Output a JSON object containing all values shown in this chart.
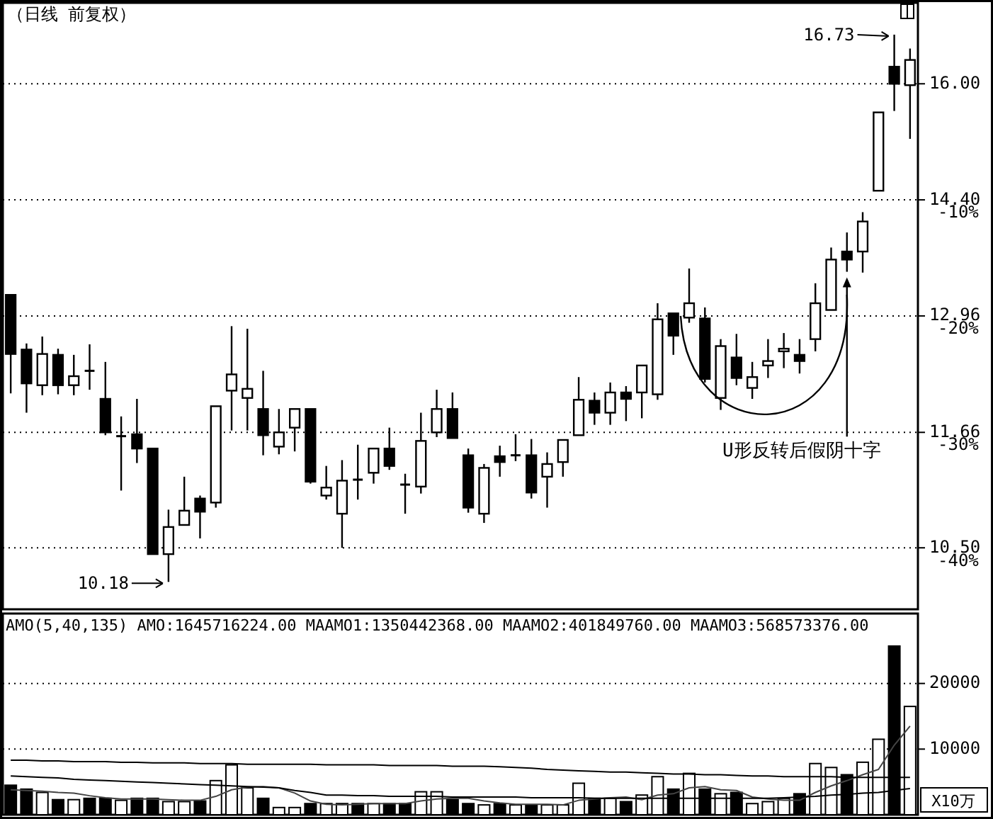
{
  "chart_data": [
    {
      "type": "candlestick",
      "title": "（日线 前复权）",
      "categories": [
        null,
        null,
        null,
        null,
        null,
        null,
        null,
        null,
        null,
        null,
        null,
        null,
        null,
        null,
        null,
        null,
        null,
        null,
        null,
        null,
        null,
        null,
        null,
        null,
        null,
        null,
        null,
        null,
        null,
        null,
        null,
        null,
        null,
        null,
        null,
        null,
        null,
        null,
        null,
        null,
        null,
        null,
        null,
        null,
        null,
        null,
        null,
        null,
        null,
        null,
        null,
        null,
        null,
        null,
        null,
        null,
        null,
        null
      ],
      "ohlc": [
        [
          13.21,
          13.21,
          12.08,
          12.52
        ],
        [
          12.57,
          12.64,
          11.87,
          12.19
        ],
        [
          12.17,
          12.72,
          12.06,
          12.52
        ],
        [
          12.51,
          12.58,
          12.07,
          12.17
        ],
        [
          12.17,
          12.51,
          12.06,
          12.27
        ],
        [
          12.33,
          12.63,
          12.12,
          12.33
        ],
        [
          12.02,
          12.43,
          11.63,
          11.66
        ],
        [
          11.62,
          11.83,
          11.06,
          11.62
        ],
        [
          11.64,
          12.02,
          11.34,
          11.49
        ],
        [
          11.49,
          11.49,
          10.44,
          10.44
        ],
        [
          10.44,
          10.87,
          10.18,
          10.7
        ],
        [
          10.72,
          11.2,
          10.72,
          10.86
        ],
        [
          10.98,
          11.01,
          10.59,
          10.85
        ],
        [
          10.94,
          11.94,
          10.89,
          11.94
        ],
        [
          12.11,
          12.84,
          11.68,
          12.29
        ],
        [
          12.03,
          12.81,
          11.68,
          12.13
        ],
        [
          11.91,
          12.33,
          11.42,
          11.63
        ],
        [
          11.51,
          11.91,
          11.43,
          11.66
        ],
        [
          11.71,
          11.91,
          11.46,
          11.91
        ],
        [
          11.91,
          11.91,
          11.13,
          11.15
        ],
        [
          11.01,
          11.31,
          10.97,
          11.09
        ],
        [
          10.83,
          11.37,
          10.5,
          11.16
        ],
        [
          11.17,
          11.53,
          10.97,
          11.17
        ],
        [
          11.24,
          11.49,
          11.13,
          11.49
        ],
        [
          11.49,
          11.71,
          11.27,
          11.31
        ],
        [
          11.12,
          11.23,
          10.83,
          11.12
        ],
        [
          11.1,
          11.87,
          11.03,
          11.57
        ],
        [
          11.66,
          12.12,
          11.61,
          11.91
        ],
        [
          11.91,
          12.09,
          11.6,
          11.6
        ],
        [
          11.42,
          11.49,
          10.84,
          10.89
        ],
        [
          10.83,
          11.33,
          10.74,
          11.29
        ],
        [
          11.41,
          11.52,
          11.2,
          11.35
        ],
        [
          11.42,
          11.64,
          11.36,
          11.42
        ],
        [
          11.42,
          11.59,
          10.98,
          11.04
        ],
        [
          11.2,
          11.45,
          10.89,
          11.33
        ],
        [
          11.35,
          11.58,
          11.2,
          11.58
        ],
        [
          11.63,
          12.26,
          11.63,
          12.01
        ],
        [
          12.0,
          12.09,
          11.74,
          11.87
        ],
        [
          11.87,
          12.2,
          11.74,
          12.09
        ],
        [
          12.09,
          12.16,
          11.78,
          12.02
        ],
        [
          12.09,
          12.39,
          11.81,
          12.39
        ],
        [
          12.07,
          13.11,
          12.01,
          12.92
        ],
        [
          12.99,
          12.99,
          12.51,
          12.73
        ],
        [
          12.94,
          13.53,
          12.88,
          13.11
        ],
        [
          12.93,
          13.06,
          12.2,
          12.24
        ],
        [
          12.03,
          12.69,
          11.9,
          12.61
        ],
        [
          12.48,
          12.75,
          12.17,
          12.25
        ],
        [
          12.14,
          12.43,
          12.02,
          12.26
        ],
        [
          12.39,
          12.69,
          12.25,
          12.44
        ],
        [
          12.55,
          12.76,
          12.36,
          12.58
        ],
        [
          12.51,
          12.69,
          12.3,
          12.44
        ],
        [
          12.69,
          13.35,
          12.55,
          13.11
        ],
        [
          13.03,
          13.79,
          13.03,
          13.64
        ],
        [
          13.74,
          13.98,
          13.49,
          13.64
        ],
        [
          13.74,
          14.24,
          13.48,
          14.12
        ],
        [
          14.52,
          15.59,
          14.52,
          15.59
        ],
        [
          16.25,
          16.73,
          15.61,
          16.0
        ],
        [
          15.98,
          16.52,
          15.22,
          16.35
        ]
      ],
      "ylim": [
        9.93,
        17.22
      ],
      "yticks": [
        {
          "value": 16,
          "label": "16.00"
        },
        {
          "value": 14.4,
          "label": "14.40"
        },
        {
          "value": 12.96,
          "label": "12.96"
        },
        {
          "value": 11.66,
          "label": "11.66"
        },
        {
          "value": 10.5,
          "label": "10.50"
        }
      ],
      "y2lim": [
        -45.37,
        6.83
      ],
      "y2ticks": [
        {
          "value": -10,
          "label": "-10%"
        },
        {
          "value": -20,
          "label": "-20%"
        },
        {
          "value": -30,
          "label": "-30%"
        },
        {
          "value": -40,
          "label": "-40%"
        }
      ],
      "log": "y",
      "grid": "y",
      "annotations": [
        "16.73",
        "10.18",
        "U形反转后假阴十字"
      ]
    },
    {
      "type": "bar",
      "title": "AMO(5,40,135) AMO:1645716224.00 MAAMO1:1350442368.00 MAAMO2:401849760.00 MAAMO3:568573376.00",
      "ylabel": "X10万",
      "categories": [
        null,
        null,
        null,
        null,
        null,
        null,
        null,
        null,
        null,
        null,
        null,
        null,
        null,
        null,
        null,
        null,
        null,
        null,
        null,
        null,
        null,
        null,
        null,
        null,
        null,
        null,
        null,
        null,
        null,
        null,
        null,
        null,
        null,
        null,
        null,
        null,
        null,
        null,
        null,
        null,
        null,
        null,
        null,
        null,
        null,
        null,
        null,
        null,
        null,
        null,
        null,
        null,
        null,
        null,
        null,
        null,
        null,
        null
      ],
      "series": [
        {
          "type": "bar",
          "values": [
            4500,
            3900,
            3400,
            2300,
            2300,
            2500,
            2500,
            2200,
            2500,
            2500,
            2000,
            2000,
            2100,
            5200,
            7600,
            4100,
            2500,
            1100,
            1100,
            1700,
            1700,
            1700,
            1700,
            1700,
            1700,
            1700,
            3500,
            3500,
            2300,
            1700,
            1500,
            1700,
            1500,
            1500,
            1500,
            1500,
            4800,
            2500,
            2500,
            2000,
            3000,
            5800,
            3900,
            6300,
            3900,
            3200,
            3400,
            1700,
            2000,
            2500,
            3200,
            7800,
            7200,
            6100,
            8000,
            11500,
            25700,
            16500
          ],
          "colors": [
            "#000000",
            "#000000",
            "#ffffff",
            "#000000",
            "#ffffff",
            "#000000",
            "#000000",
            "#ffffff",
            "#000000",
            "#000000",
            "#ffffff",
            "#ffffff",
            "#000000",
            "#ffffff",
            "#ffffff",
            "#ffffff",
            "#000000",
            "#ffffff",
            "#ffffff",
            "#000000",
            "#ffffff",
            "#ffffff",
            "#000000",
            "#ffffff",
            "#000000",
            "#000000",
            "#ffffff",
            "#ffffff",
            "#000000",
            "#000000",
            "#ffffff",
            "#000000",
            "#ffffff",
            "#000000",
            "#ffffff",
            "#ffffff",
            "#ffffff",
            "#000000",
            "#ffffff",
            "#000000",
            "#ffffff",
            "#ffffff",
            "#000000",
            "#ffffff",
            "#000000",
            "#ffffff",
            "#000000",
            "#ffffff",
            "#ffffff",
            "#ffffff",
            "#000000",
            "#ffffff",
            "#ffffff",
            "#000000",
            "#ffffff",
            "#ffffff",
            "#000000",
            "#ffffff"
          ]
        },
        {
          "type": "line",
          "color": "#444444",
          "values": [
            3800,
            3700,
            3600,
            3400,
            3300,
            2900,
            2600,
            2400,
            2400,
            2400,
            2300,
            2200,
            2200,
            2800,
            3800,
            4200,
            4300,
            4100,
            3300,
            2100,
            1600,
            1500,
            1600,
            1700,
            1700,
            1700,
            2100,
            2400,
            2500,
            2500,
            2100,
            1800,
            1600,
            1600,
            1600,
            1500,
            2200,
            2400,
            2600,
            2700,
            2300,
            3000,
            3200,
            4100,
            4300,
            3800,
            3700,
            2700,
            2400,
            2200,
            2200,
            3400,
            4400,
            5200,
            6100,
            6900,
            10600,
            13500
          ]
        },
        {
          "type": "line",
          "color": "#000000",
          "values": [
            5900,
            5800,
            5700,
            5600,
            5400,
            5300,
            5200,
            5100,
            5000,
            4900,
            4800,
            4700,
            4600,
            4500,
            4400,
            4300,
            4200,
            4100,
            3700,
            3400,
            3000,
            3000,
            2900,
            2900,
            2800,
            2800,
            2800,
            2800,
            2700,
            2700,
            2700,
            2700,
            2700,
            2600,
            2600,
            2600,
            2600,
            2500,
            2500,
            2500,
            2500,
            2500,
            2500,
            2500,
            2500,
            2500,
            2500,
            2500,
            2500,
            2600,
            2700,
            2800,
            3000,
            3100,
            3300,
            3400,
            3700,
            4000
          ]
        },
        {
          "type": "line",
          "color": "#000000",
          "values": [
            8300,
            8300,
            8200,
            8200,
            8100,
            8100,
            8100,
            8000,
            8000,
            7900,
            7900,
            7900,
            7800,
            7800,
            7800,
            7700,
            7700,
            7700,
            7700,
            7700,
            7600,
            7600,
            7600,
            7600,
            7500,
            7500,
            7500,
            7500,
            7400,
            7400,
            7400,
            7300,
            7200,
            7100,
            6900,
            6800,
            6700,
            6600,
            6500,
            6500,
            6400,
            6300,
            6200,
            6200,
            6100,
            6100,
            6000,
            5900,
            5900,
            5800,
            5800,
            5800,
            5800,
            5700,
            5700,
            5700,
            5700,
            5700
          ]
        }
      ],
      "ylim": [
        0,
        30650
      ],
      "yticks": [
        10000,
        20000
      ],
      "grid": "y"
    }
  ]
}
